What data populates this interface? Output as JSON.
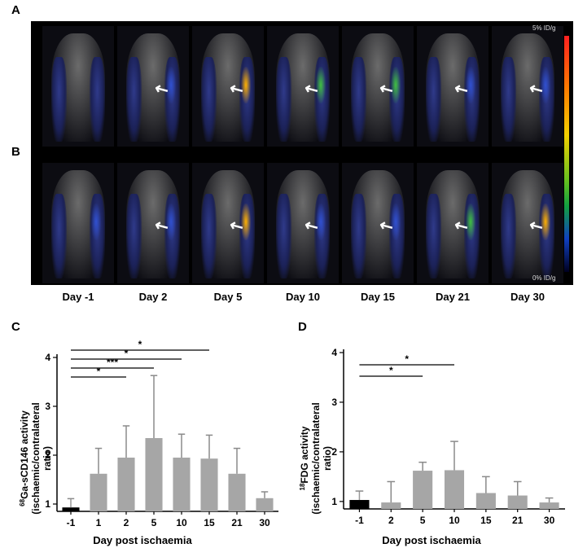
{
  "panel_letters": {
    "a": "A",
    "b": "B",
    "c": "C",
    "d": "D"
  },
  "imaging": {
    "colorbar_max": "5% ID/g",
    "colorbar_min": "0% ID/g",
    "arrow_glyph": "↖",
    "day_labels": [
      "Day -1",
      "Day 2",
      "Day 5",
      "Day 10",
      "Day 15",
      "Day 21",
      "Day 30"
    ],
    "colors": {
      "colorbar_top": "#ff2020",
      "colorbar_bottom": "#000020",
      "scan_body": "#6b6b6b",
      "uptake_low": "#2f3a8a",
      "uptake_high": "#ffb000"
    }
  },
  "chart_data": [
    {
      "type": "bar",
      "panel": "C",
      "categories": [
        "-1",
        "1",
        "2",
        "5",
        "10",
        "15",
        "21",
        "30"
      ],
      "values": [
        0.93,
        1.62,
        1.95,
        2.35,
        1.95,
        1.93,
        1.62,
        1.12
      ],
      "errors": [
        0.18,
        0.52,
        0.65,
        1.28,
        0.48,
        0.48,
        0.52,
        0.13
      ],
      "bar_colors": [
        "#000000",
        "#a6a6a6",
        "#a6a6a6",
        "#a6a6a6",
        "#a6a6a6",
        "#a6a6a6",
        "#a6a6a6",
        "#a6a6a6"
      ],
      "xlabel": "Day post ischaemia",
      "ylabel_sup": "68",
      "ylabel_line1": "Ga-sCD146 activity",
      "ylabel_line2": "(ischaemic/contralateral",
      "ylabel_line3": "ratio)",
      "ylim": [
        0.85,
        4
      ],
      "yticks": [
        1,
        2,
        3,
        4
      ],
      "significance": [
        {
          "from": "-1",
          "to": "2",
          "label": "*"
        },
        {
          "from": "-1",
          "to": "5",
          "label": "***"
        },
        {
          "from": "-1",
          "to": "10",
          "label": "*"
        },
        {
          "from": "-1",
          "to": "15",
          "label": "*"
        }
      ]
    },
    {
      "type": "bar",
      "panel": "D",
      "categories": [
        "-1",
        "2",
        "5",
        "10",
        "15",
        "21",
        "30"
      ],
      "values": [
        1.03,
        0.98,
        1.62,
        1.63,
        1.17,
        1.12,
        0.98
      ],
      "errors": [
        0.18,
        0.42,
        0.17,
        0.58,
        0.33,
        0.28,
        0.09
      ],
      "bar_colors": [
        "#000000",
        "#a6a6a6",
        "#a6a6a6",
        "#a6a6a6",
        "#a6a6a6",
        "#a6a6a6",
        "#a6a6a6"
      ],
      "xlabel": "Day post ischaemia",
      "ylabel_sup": "18",
      "ylabel_line1": "FDG activity",
      "ylabel_line2": "(ischaemic/contralateral",
      "ylabel_line3": "ratio)",
      "ylim": [
        0.85,
        4
      ],
      "yticks": [
        1,
        2,
        3,
        4
      ],
      "significance": [
        {
          "from": "-1",
          "to": "5",
          "label": "*"
        },
        {
          "from": "-1",
          "to": "10",
          "label": "*"
        }
      ]
    }
  ]
}
